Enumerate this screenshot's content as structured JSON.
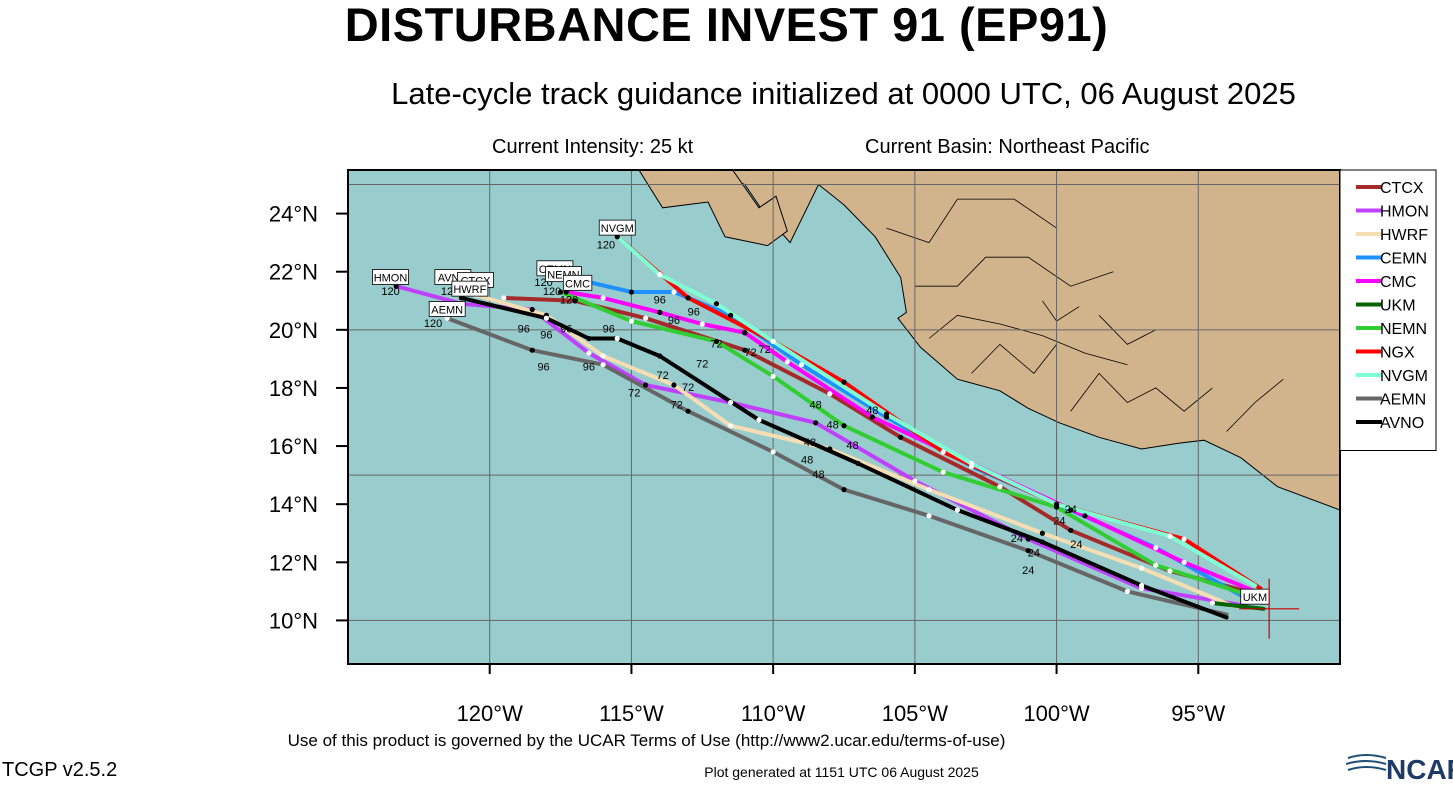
{
  "header": {
    "title": "DISTURBANCE INVEST 91 (EP91)",
    "subtitle": "Late-cycle track guidance initialized at 0000 UTC, 06 August 2025",
    "current_intensity": "Current Intensity: 25 kt",
    "current_basin": "Current Basin: Northeast Pacific"
  },
  "footer": {
    "terms": "Use of this product is governed by the UCAR Terms of Use (http://www2.ucar.edu/terms-of-use)",
    "version": "TCGP v2.5.2",
    "generated": "Plot generated at 1151 UTC   06 August 2025",
    "logo_text": "NCAR"
  },
  "map": {
    "lon_range": [
      -125,
      -90
    ],
    "lat_range": [
      8.5,
      25.5
    ],
    "lat_ticks": [
      {
        "value": 10,
        "label": "10°N"
      },
      {
        "value": 12,
        "label": "12°N"
      },
      {
        "value": 14,
        "label": "14°N"
      },
      {
        "value": 16,
        "label": "16°N"
      },
      {
        "value": 18,
        "label": "18°N"
      },
      {
        "value": 20,
        "label": "20°N"
      },
      {
        "value": 22,
        "label": "22°N"
      },
      {
        "value": 24,
        "label": "24°N"
      }
    ],
    "lon_ticks": [
      {
        "value": -120,
        "label": "120°W"
      },
      {
        "value": -115,
        "label": "115°W"
      },
      {
        "value": -110,
        "label": "110°W"
      },
      {
        "value": -105,
        "label": "105°W"
      },
      {
        "value": -100,
        "label": "100°W"
      },
      {
        "value": -95,
        "label": "95°W"
      }
    ],
    "grid_lats": [
      10,
      15,
      20,
      25
    ],
    "grid_lons": [
      -120,
      -115,
      -110,
      -105,
      -100,
      -95
    ],
    "ocean_color": "#99cccc",
    "land_color": "#d2b48c",
    "current_position": {
      "lon": -92.5,
      "lat": 10.4
    }
  },
  "chart_data": {
    "type": "map-track",
    "series": [
      {
        "name": "CTCX",
        "color": "#a52a2a",
        "points": [
          [
            -92.9,
            10.9
          ],
          [
            -96,
            11.7
          ],
          [
            -99.5,
            13.1
          ],
          [
            -102,
            14.6
          ],
          [
            -105.5,
            16.3
          ],
          [
            -108,
            17.8
          ],
          [
            -111,
            19.3
          ],
          [
            -114.5,
            20.4
          ],
          [
            -117,
            21
          ],
          [
            -119.5,
            21.1
          ]
        ]
      },
      {
        "name": "HMON",
        "color": "#bf40ff",
        "points": [
          [
            -93.3,
            10.5
          ],
          [
            -97,
            11.1
          ],
          [
            -101,
            12.8
          ],
          [
            -105,
            14.8
          ],
          [
            -108.5,
            16.8
          ],
          [
            -111.5,
            17.5
          ],
          [
            -114.5,
            18.1
          ],
          [
            -116.5,
            19.2
          ],
          [
            -118.5,
            20.7
          ],
          [
            -121,
            20.9
          ],
          [
            -123.3,
            21.5
          ]
        ]
      },
      {
        "name": "HWRF",
        "color": "#f5deb3",
        "points": [
          [
            -93.8,
            10.5
          ],
          [
            -97,
            11.8
          ],
          [
            -100.5,
            13
          ],
          [
            -104.5,
            14.5
          ],
          [
            -108,
            15.9
          ],
          [
            -111.5,
            16.7
          ],
          [
            -113.5,
            18.1
          ],
          [
            -116,
            19.1
          ],
          [
            -118,
            20.5
          ],
          [
            -120.5,
            21.2
          ]
        ]
      },
      {
        "name": "CEMN",
        "color": "#1e90ff",
        "points": [
          [
            -93.2,
            10.7
          ],
          [
            -96.5,
            12.5
          ],
          [
            -99.5,
            13.8
          ],
          [
            -103,
            15.3
          ],
          [
            -106,
            17
          ],
          [
            -109,
            18.8
          ],
          [
            -111.5,
            20.5
          ],
          [
            -113.5,
            21.3
          ],
          [
            -115,
            21.3
          ],
          [
            -117.2,
            21.8
          ]
        ]
      },
      {
        "name": "CMC",
        "color": "#ff00ff",
        "points": [
          [
            -93,
            11
          ],
          [
            -95.5,
            12
          ],
          [
            -99,
            13.6
          ],
          [
            -103,
            15.4
          ],
          [
            -106.5,
            17
          ],
          [
            -109.5,
            18.9
          ],
          [
            -111,
            19.9
          ],
          [
            -112.5,
            20.2
          ],
          [
            -114,
            20.6
          ],
          [
            -116,
            21.1
          ],
          [
            -117.3,
            21.3
          ]
        ]
      },
      {
        "name": "UKM",
        "color": "#006400",
        "points": [
          [
            -92.7,
            10.4
          ],
          [
            -94.5,
            10.6
          ]
        ]
      },
      {
        "name": "NEMN",
        "color": "#32cd32",
        "points": [
          [
            -93,
            10.8
          ],
          [
            -96.5,
            11.9
          ],
          [
            -100,
            13.9
          ],
          [
            -104,
            15.1
          ],
          [
            -107.5,
            16.7
          ],
          [
            -110,
            18.4
          ],
          [
            -112,
            19.6
          ],
          [
            -115,
            20.3
          ],
          [
            -117.5,
            21.3
          ]
        ]
      },
      {
        "name": "NGX",
        "color": "#ff0000",
        "points": [
          [
            -92.8,
            11.1
          ],
          [
            -95.5,
            12.8
          ],
          [
            -100,
            14
          ],
          [
            -104,
            15.8
          ],
          [
            -107.5,
            18.2
          ],
          [
            -110,
            19.6
          ],
          [
            -113,
            21.1
          ],
          [
            -115.5,
            23.2
          ]
        ]
      },
      {
        "name": "NVGM",
        "color": "#7fffd4",
        "points": [
          [
            -93,
            11.2
          ],
          [
            -96,
            12.9
          ],
          [
            -100,
            14
          ],
          [
            -103,
            15.4
          ],
          [
            -106,
            17.1
          ],
          [
            -110,
            19.6
          ],
          [
            -112,
            20.9
          ],
          [
            -114,
            21.9
          ],
          [
            -115.5,
            23.2
          ]
        ]
      },
      {
        "name": "AEMN",
        "color": "#666666",
        "points": [
          [
            -94,
            10.2
          ],
          [
            -97.5,
            11
          ],
          [
            -101,
            12.4
          ],
          [
            -104.5,
            13.6
          ],
          [
            -107.5,
            14.5
          ],
          [
            -110,
            15.8
          ],
          [
            -113,
            17.2
          ],
          [
            -116,
            18.8
          ],
          [
            -118.5,
            19.3
          ],
          [
            -121.5,
            20.4
          ]
        ]
      },
      {
        "name": "AVNO",
        "color": "#000000",
        "points": [
          [
            -94,
            10.1
          ],
          [
            -97,
            11.2
          ],
          [
            -100.5,
            12.7
          ],
          [
            -103.5,
            13.8
          ],
          [
            -107,
            15.4
          ],
          [
            -110.5,
            16.9
          ],
          [
            -114,
            19.1
          ],
          [
            -115.5,
            19.7
          ],
          [
            -116.5,
            19.7
          ],
          [
            -118,
            20.4
          ],
          [
            -121,
            21.1
          ]
        ]
      }
    ],
    "tau_labels": [
      {
        "text": "24",
        "lon": -101.4,
        "lat": 12.7
      },
      {
        "text": "24",
        "lon": -100.8,
        "lat": 12.2
      },
      {
        "text": "24",
        "lon": -99.9,
        "lat": 13.3
      },
      {
        "text": "24",
        "lon": -99.3,
        "lat": 12.5
      },
      {
        "text": "24",
        "lon": -101,
        "lat": 11.6
      },
      {
        "text": "24",
        "lon": -99.5,
        "lat": 13.7
      },
      {
        "text": "48",
        "lon": -108.5,
        "lat": 17.3
      },
      {
        "text": "48",
        "lon": -107.9,
        "lat": 16.6
      },
      {
        "text": "48",
        "lon": -107.2,
        "lat": 15.9
      },
      {
        "text": "48",
        "lon": -108.8,
        "lat": 15.4
      },
      {
        "text": "48",
        "lon": -108.4,
        "lat": 14.9
      },
      {
        "text": "48",
        "lon": -106.5,
        "lat": 17.1
      },
      {
        "text": "48",
        "lon": -108.7,
        "lat": 16
      },
      {
        "text": "72",
        "lon": -112,
        "lat": 19.4
      },
      {
        "text": "72",
        "lon": -112.5,
        "lat": 18.7
      },
      {
        "text": "72",
        "lon": -113.9,
        "lat": 18.3
      },
      {
        "text": "72",
        "lon": -113,
        "lat": 17.9
      },
      {
        "text": "72",
        "lon": -113.4,
        "lat": 17.3
      },
      {
        "text": "72",
        "lon": -114.9,
        "lat": 17.7
      },
      {
        "text": "72",
        "lon": -110.8,
        "lat": 19.1
      },
      {
        "text": "72",
        "lon": -110.3,
        "lat": 19.2
      },
      {
        "text": "96",
        "lon": -114,
        "lat": 20.9
      },
      {
        "text": "96",
        "lon": -113.5,
        "lat": 20.2
      },
      {
        "text": "96",
        "lon": -112.8,
        "lat": 20.5
      },
      {
        "text": "96",
        "lon": -115.8,
        "lat": 19.9
      },
      {
        "text": "96",
        "lon": -117.3,
        "lat": 19.9
      },
      {
        "text": "96",
        "lon": -118,
        "lat": 19.7
      },
      {
        "text": "96",
        "lon": -118.8,
        "lat": 19.9
      },
      {
        "text": "96",
        "lon": -118.1,
        "lat": 18.6
      },
      {
        "text": "96",
        "lon": -116.5,
        "lat": 18.6
      },
      {
        "text": "120",
        "lon": -123.5,
        "lat": 21.2
      },
      {
        "text": "120",
        "lon": -121.4,
        "lat": 21.2
      },
      {
        "text": "120",
        "lon": -122,
        "lat": 20.1
      },
      {
        "text": "120",
        "lon": -118.1,
        "lat": 21.5
      },
      {
        "text": "120",
        "lon": -117.8,
        "lat": 21.2
      },
      {
        "text": "120",
        "lon": -117.2,
        "lat": 20.9
      },
      {
        "text": "120",
        "lon": -115.9,
        "lat": 22.8
      }
    ],
    "model_tags": [
      {
        "text": "HMON",
        "lon": -123.5,
        "lat": 21.8
      },
      {
        "text": "AVNO",
        "lon": -121.3,
        "lat": 21.8
      },
      {
        "text": "CTCX",
        "lon": -120.5,
        "lat": 21.7
      },
      {
        "text": "HWRF",
        "lon": -120.7,
        "lat": 21.4
      },
      {
        "text": "AEMN",
        "lon": -121.5,
        "lat": 20.7
      },
      {
        "text": "CEMN",
        "lon": -117.7,
        "lat": 22.1
      },
      {
        "text": "NEMN",
        "lon": -117.4,
        "lat": 21.9
      },
      {
        "text": "CMC",
        "lon": -116.9,
        "lat": 21.6
      },
      {
        "text": "NVGM",
        "lon": -115.5,
        "lat": 23.5
      },
      {
        "text": "UKM",
        "lon": -93,
        "lat": 10.8
      }
    ]
  }
}
